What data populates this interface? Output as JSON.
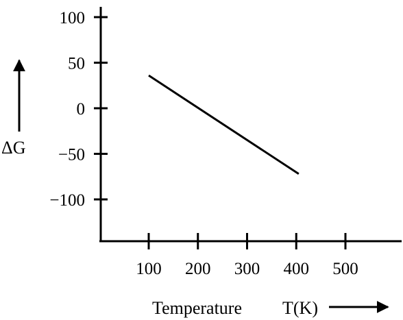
{
  "chart_data": {
    "type": "line",
    "xlabel": "Temperature",
    "xunit": "T(K)",
    "ylabel": "ΔG",
    "x_ticks": [
      100,
      200,
      300,
      400,
      500
    ],
    "y_ticks": [
      100,
      50,
      0,
      -50,
      -100
    ],
    "y_tick_labels": [
      "100",
      "50",
      "0",
      "−50",
      "−100"
    ],
    "xlim": [
      0,
      550
    ],
    "ylim": [
      -150,
      105
    ],
    "series": [
      {
        "x": [
          100,
          405
        ],
        "y": [
          36,
          -72
        ]
      }
    ],
    "grid": false,
    "legend": "none"
  }
}
